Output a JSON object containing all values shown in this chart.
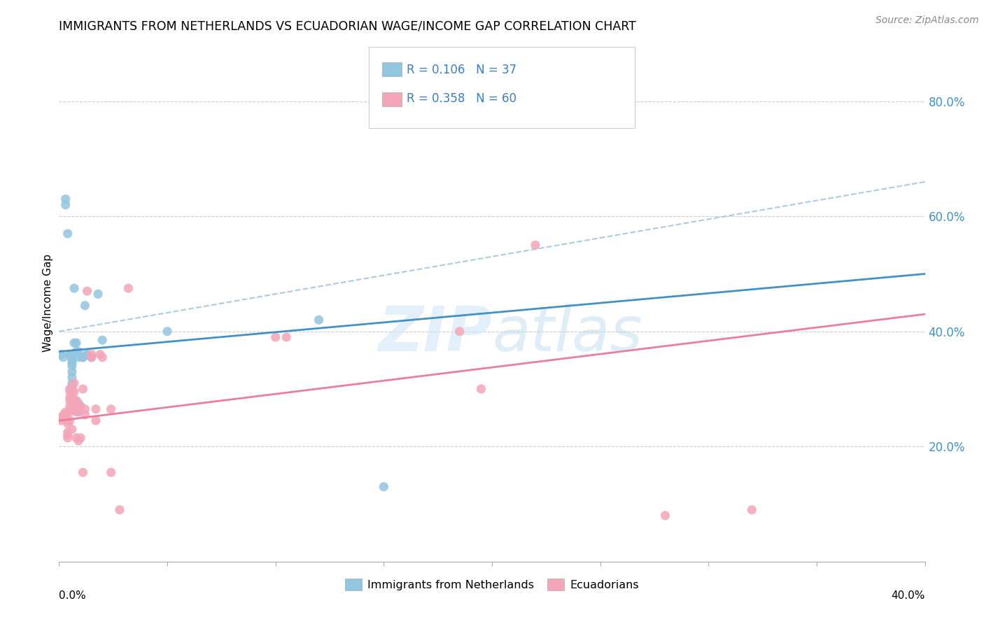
{
  "title": "IMMIGRANTS FROM NETHERLANDS VS ECUADORIAN WAGE/INCOME GAP CORRELATION CHART",
  "source": "Source: ZipAtlas.com",
  "ylabel": "Wage/Income Gap",
  "right_yticks": [
    "20.0%",
    "40.0%",
    "60.0%",
    "80.0%"
  ],
  "right_ytick_vals": [
    0.2,
    0.4,
    0.6,
    0.8
  ],
  "watermark": "ZIPatlas",
  "legend1_label": "R = 0.106   N = 37",
  "legend2_label": "R = 0.358   N = 60",
  "legend_label1": "Immigrants from Netherlands",
  "legend_label2": "Ecuadorians",
  "blue_color": "#92c5de",
  "pink_color": "#f4a6b8",
  "blue_line_color": "#4292c6",
  "pink_line_color": "#e87ea1",
  "dash_line_color": "#aaccdd",
  "blue_scatter": [
    [
      0.001,
      0.36
    ],
    [
      0.002,
      0.355
    ],
    [
      0.003,
      0.63
    ],
    [
      0.003,
      0.62
    ],
    [
      0.004,
      0.57
    ],
    [
      0.005,
      0.36
    ],
    [
      0.005,
      0.36
    ],
    [
      0.006,
      0.36
    ],
    [
      0.006,
      0.355
    ],
    [
      0.006,
      0.355
    ],
    [
      0.006,
      0.35
    ],
    [
      0.006,
      0.345
    ],
    [
      0.006,
      0.34
    ],
    [
      0.006,
      0.33
    ],
    [
      0.006,
      0.32
    ],
    [
      0.006,
      0.31
    ],
    [
      0.006,
      0.3
    ],
    [
      0.006,
      0.285
    ],
    [
      0.007,
      0.475
    ],
    [
      0.007,
      0.38
    ],
    [
      0.008,
      0.38
    ],
    [
      0.008,
      0.365
    ],
    [
      0.009,
      0.365
    ],
    [
      0.009,
      0.355
    ],
    [
      0.009,
      0.275
    ],
    [
      0.009,
      0.26
    ],
    [
      0.011,
      0.355
    ],
    [
      0.011,
      0.355
    ],
    [
      0.012,
      0.445
    ],
    [
      0.013,
      0.36
    ],
    [
      0.013,
      0.36
    ],
    [
      0.015,
      0.355
    ],
    [
      0.018,
      0.465
    ],
    [
      0.02,
      0.385
    ],
    [
      0.05,
      0.4
    ],
    [
      0.12,
      0.42
    ],
    [
      0.15,
      0.13
    ]
  ],
  "pink_scatter": [
    [
      0.001,
      0.245
    ],
    [
      0.001,
      0.25
    ],
    [
      0.002,
      0.255
    ],
    [
      0.002,
      0.25
    ],
    [
      0.003,
      0.26
    ],
    [
      0.003,
      0.255
    ],
    [
      0.003,
      0.255
    ],
    [
      0.004,
      0.24
    ],
    [
      0.004,
      0.245
    ],
    [
      0.004,
      0.225
    ],
    [
      0.004,
      0.22
    ],
    [
      0.004,
      0.215
    ],
    [
      0.005,
      0.3
    ],
    [
      0.005,
      0.295
    ],
    [
      0.005,
      0.285
    ],
    [
      0.005,
      0.28
    ],
    [
      0.005,
      0.27
    ],
    [
      0.005,
      0.26
    ],
    [
      0.005,
      0.245
    ],
    [
      0.006,
      0.3
    ],
    [
      0.006,
      0.295
    ],
    [
      0.006,
      0.285
    ],
    [
      0.006,
      0.27
    ],
    [
      0.006,
      0.265
    ],
    [
      0.006,
      0.23
    ],
    [
      0.007,
      0.31
    ],
    [
      0.007,
      0.295
    ],
    [
      0.007,
      0.28
    ],
    [
      0.007,
      0.275
    ],
    [
      0.007,
      0.265
    ],
    [
      0.008,
      0.28
    ],
    [
      0.008,
      0.27
    ],
    [
      0.008,
      0.26
    ],
    [
      0.008,
      0.215
    ],
    [
      0.009,
      0.265
    ],
    [
      0.009,
      0.21
    ],
    [
      0.01,
      0.27
    ],
    [
      0.01,
      0.215
    ],
    [
      0.011,
      0.3
    ],
    [
      0.011,
      0.155
    ],
    [
      0.012,
      0.265
    ],
    [
      0.012,
      0.255
    ],
    [
      0.013,
      0.47
    ],
    [
      0.015,
      0.36
    ],
    [
      0.015,
      0.355
    ],
    [
      0.017,
      0.265
    ],
    [
      0.017,
      0.245
    ],
    [
      0.019,
      0.36
    ],
    [
      0.02,
      0.355
    ],
    [
      0.024,
      0.265
    ],
    [
      0.024,
      0.155
    ],
    [
      0.028,
      0.09
    ],
    [
      0.032,
      0.475
    ],
    [
      0.1,
      0.39
    ],
    [
      0.105,
      0.39
    ],
    [
      0.185,
      0.4
    ],
    [
      0.195,
      0.3
    ],
    [
      0.22,
      0.55
    ],
    [
      0.28,
      0.08
    ],
    [
      0.32,
      0.09
    ]
  ],
  "xlim": [
    0.0,
    0.4
  ],
  "ylim": [
    0.0,
    0.9
  ]
}
